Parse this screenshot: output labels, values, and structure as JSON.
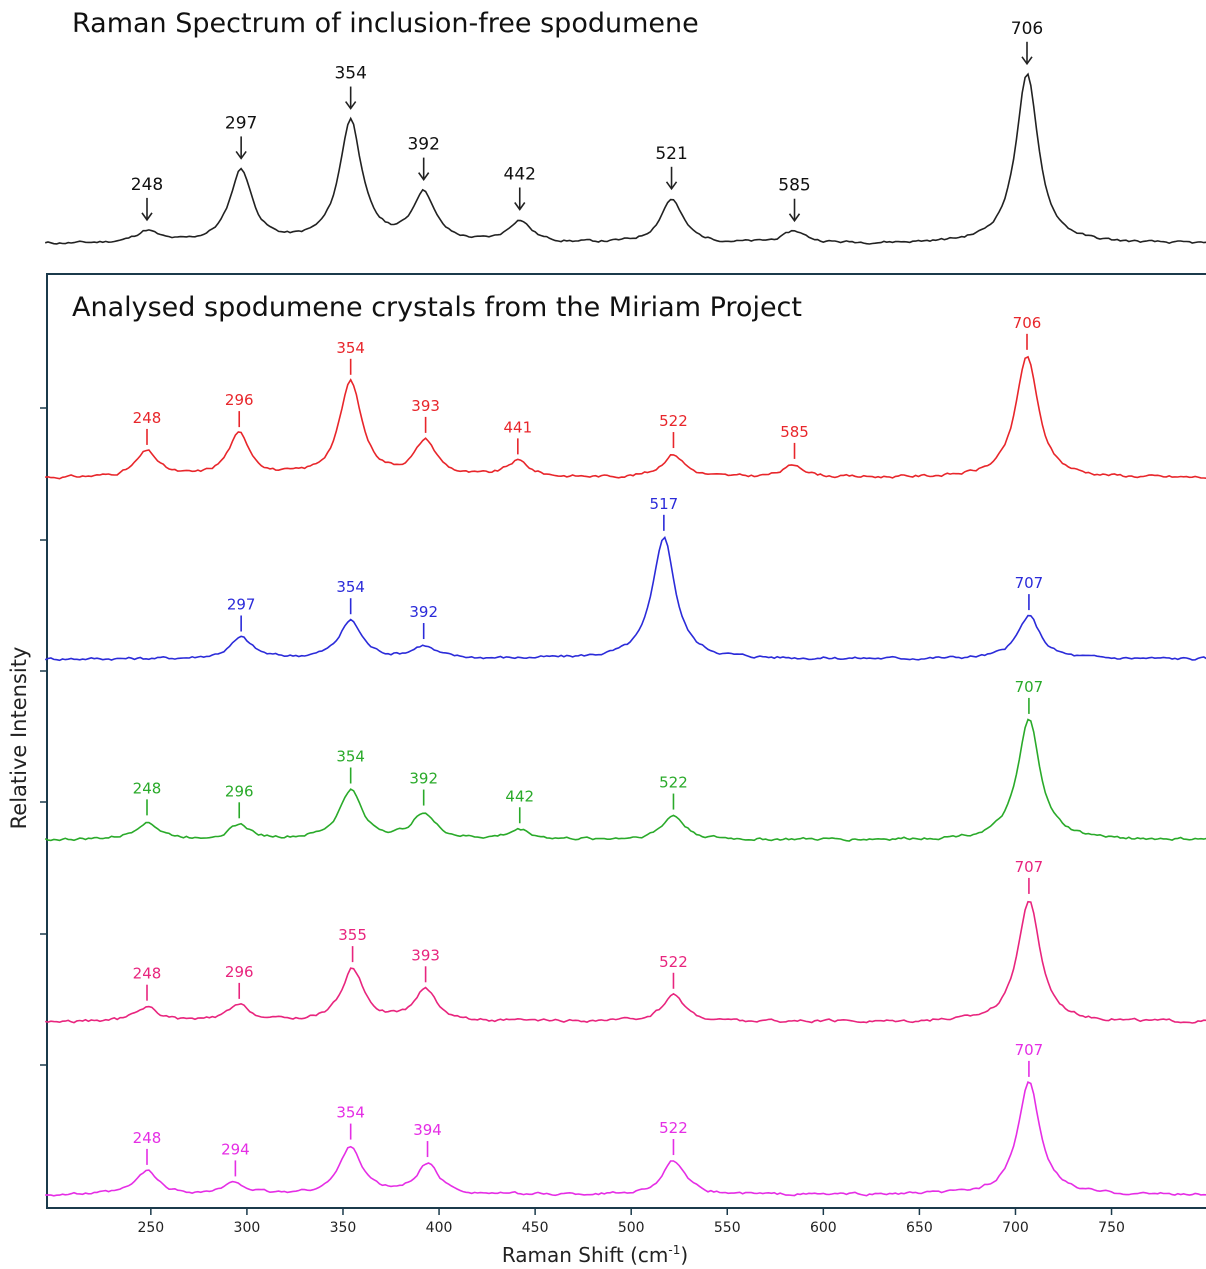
{
  "chart_data": [
    {
      "type": "line",
      "title": "Raman Spectrum of inclusion-free spodumene",
      "xlabel": "",
      "ylabel": "",
      "xlim": [
        195,
        800
      ],
      "grid": false,
      "annotation_style": "arrow",
      "color": "#222222",
      "peaks": [
        {
          "x": 248,
          "label": "248",
          "h": 0.07
        },
        {
          "x": 297,
          "label": "297",
          "h": 0.43
        },
        {
          "x": 354,
          "label": "354",
          "h": 0.72
        },
        {
          "x": 392,
          "label": "392",
          "h": 0.29
        },
        {
          "x": 442,
          "label": "442",
          "h": 0.13
        },
        {
          "x": 521,
          "label": "521",
          "h": 0.26
        },
        {
          "x": 585,
          "label": "585",
          "h": 0.07
        },
        {
          "x": 706,
          "label": "706",
          "h": 1.0
        }
      ]
    },
    {
      "type": "line",
      "title": "Analysed spodumene crystals from the Miriam Project",
      "xlabel": "Raman Shift (cm",
      "xlabel_sup": "-1",
      "xlabel_end": ")",
      "ylabel": "Relative Intensity",
      "xlim": [
        195,
        800
      ],
      "xticks": [
        250,
        300,
        350,
        400,
        450,
        500,
        550,
        600,
        650,
        700,
        750
      ],
      "grid": false,
      "annotation_style": "tick",
      "series": [
        {
          "color": "#e8262b",
          "peaks": [
            {
              "x": 248,
              "label": "248",
              "h": 0.21
            },
            {
              "x": 296,
              "label": "296",
              "h": 0.35
            },
            {
              "x": 354,
              "label": "354",
              "h": 0.78
            },
            {
              "x": 393,
              "label": "393",
              "h": 0.29
            },
            {
              "x": 441,
              "label": "441",
              "h": 0.13
            },
            {
              "x": 522,
              "label": "522",
              "h": 0.19
            },
            {
              "x": 585,
              "label": "585",
              "h": 0.1
            },
            {
              "x": 706,
              "label": "706",
              "h": 1.0
            }
          ]
        },
        {
          "color": "#2b2bd9",
          "peaks": [
            {
              "x": 297,
              "label": "297",
              "h": 0.17
            },
            {
              "x": 354,
              "label": "354",
              "h": 0.31
            },
            {
              "x": 392,
              "label": "392",
              "h": 0.1
            },
            {
              "x": 517,
              "label": "517",
              "h": 1.0
            },
            {
              "x": 707,
              "label": "707",
              "h": 0.35
            }
          ]
        },
        {
          "color": "#2aaa2a",
          "peaks": [
            {
              "x": 248,
              "label": "248",
              "h": 0.15
            },
            {
              "x": 296,
              "label": "296",
              "h": 0.12
            },
            {
              "x": 354,
              "label": "354",
              "h": 0.41
            },
            {
              "x": 392,
              "label": "392",
              "h": 0.22
            },
            {
              "x": 442,
              "label": "442",
              "h": 0.08
            },
            {
              "x": 522,
              "label": "522",
              "h": 0.2
            },
            {
              "x": 707,
              "label": "707",
              "h": 1.0
            }
          ]
        },
        {
          "color": "#e8257e",
          "peaks": [
            {
              "x": 248,
              "label": "248",
              "h": 0.12
            },
            {
              "x": 296,
              "label": "296",
              "h": 0.13
            },
            {
              "x": 355,
              "label": "355",
              "h": 0.43
            },
            {
              "x": 393,
              "label": "393",
              "h": 0.26
            },
            {
              "x": 522,
              "label": "522",
              "h": 0.22
            },
            {
              "x": 707,
              "label": "707",
              "h": 1.0
            }
          ]
        },
        {
          "color": "#e52ee5",
          "peaks": [
            {
              "x": 248,
              "label": "248",
              "h": 0.21
            },
            {
              "x": 294,
              "label": "294",
              "h": 0.1
            },
            {
              "x": 354,
              "label": "354",
              "h": 0.43
            },
            {
              "x": 394,
              "label": "394",
              "h": 0.27
            },
            {
              "x": 522,
              "label": "522",
              "h": 0.3
            },
            {
              "x": 707,
              "label": "707",
              "h": 1.0
            }
          ]
        }
      ]
    }
  ]
}
